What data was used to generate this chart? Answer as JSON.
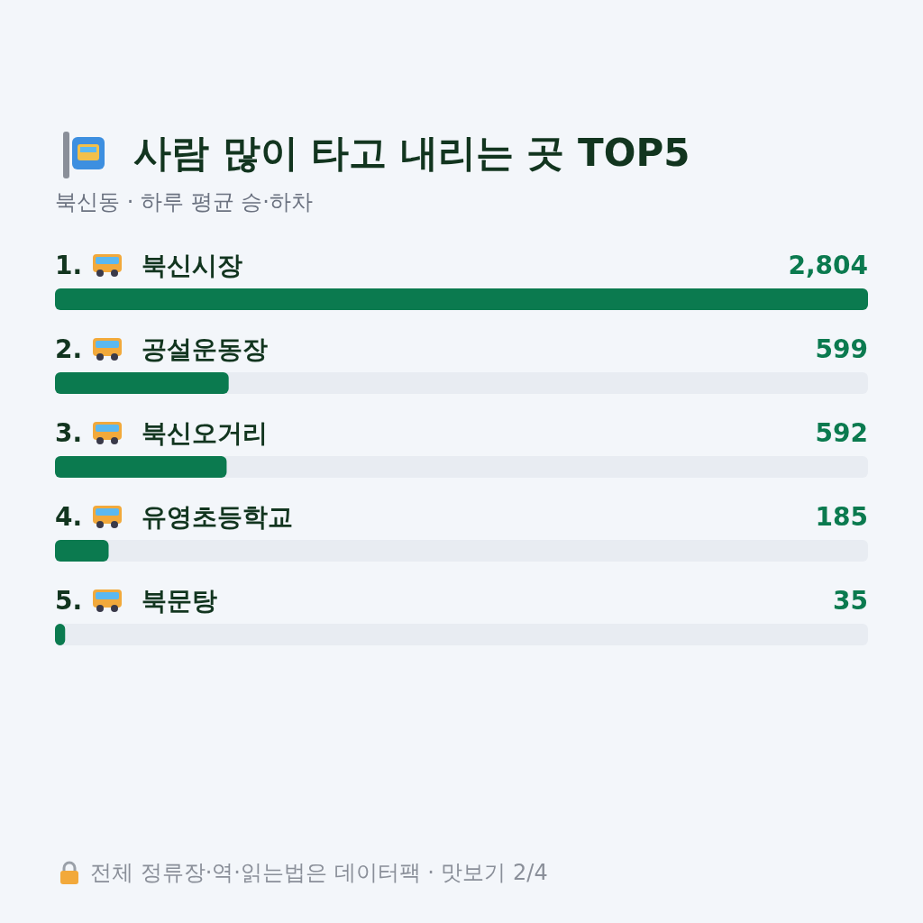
{
  "chart_data": {
    "type": "bar",
    "orientation": "horizontal",
    "title": "사람 많이 타고 내리는 곳 TOP5",
    "subtitle": "북신동 · 하루 평균 승·하차",
    "categories": [
      "1. 북신시장",
      "2. 공설운동장",
      "3. 북신오거리",
      "4. 유영초등학교",
      "5. 북문탕"
    ],
    "values": [
      2804,
      599,
      592,
      185,
      35
    ],
    "color": "#0b7a4f",
    "value_labels": [
      "2,804",
      "599",
      "592",
      "185",
      "35"
    ],
    "annotations": [
      "전체 정류장·역·읽는법은 데이터팩 · 맛보기 2/4"
    ]
  }
}
